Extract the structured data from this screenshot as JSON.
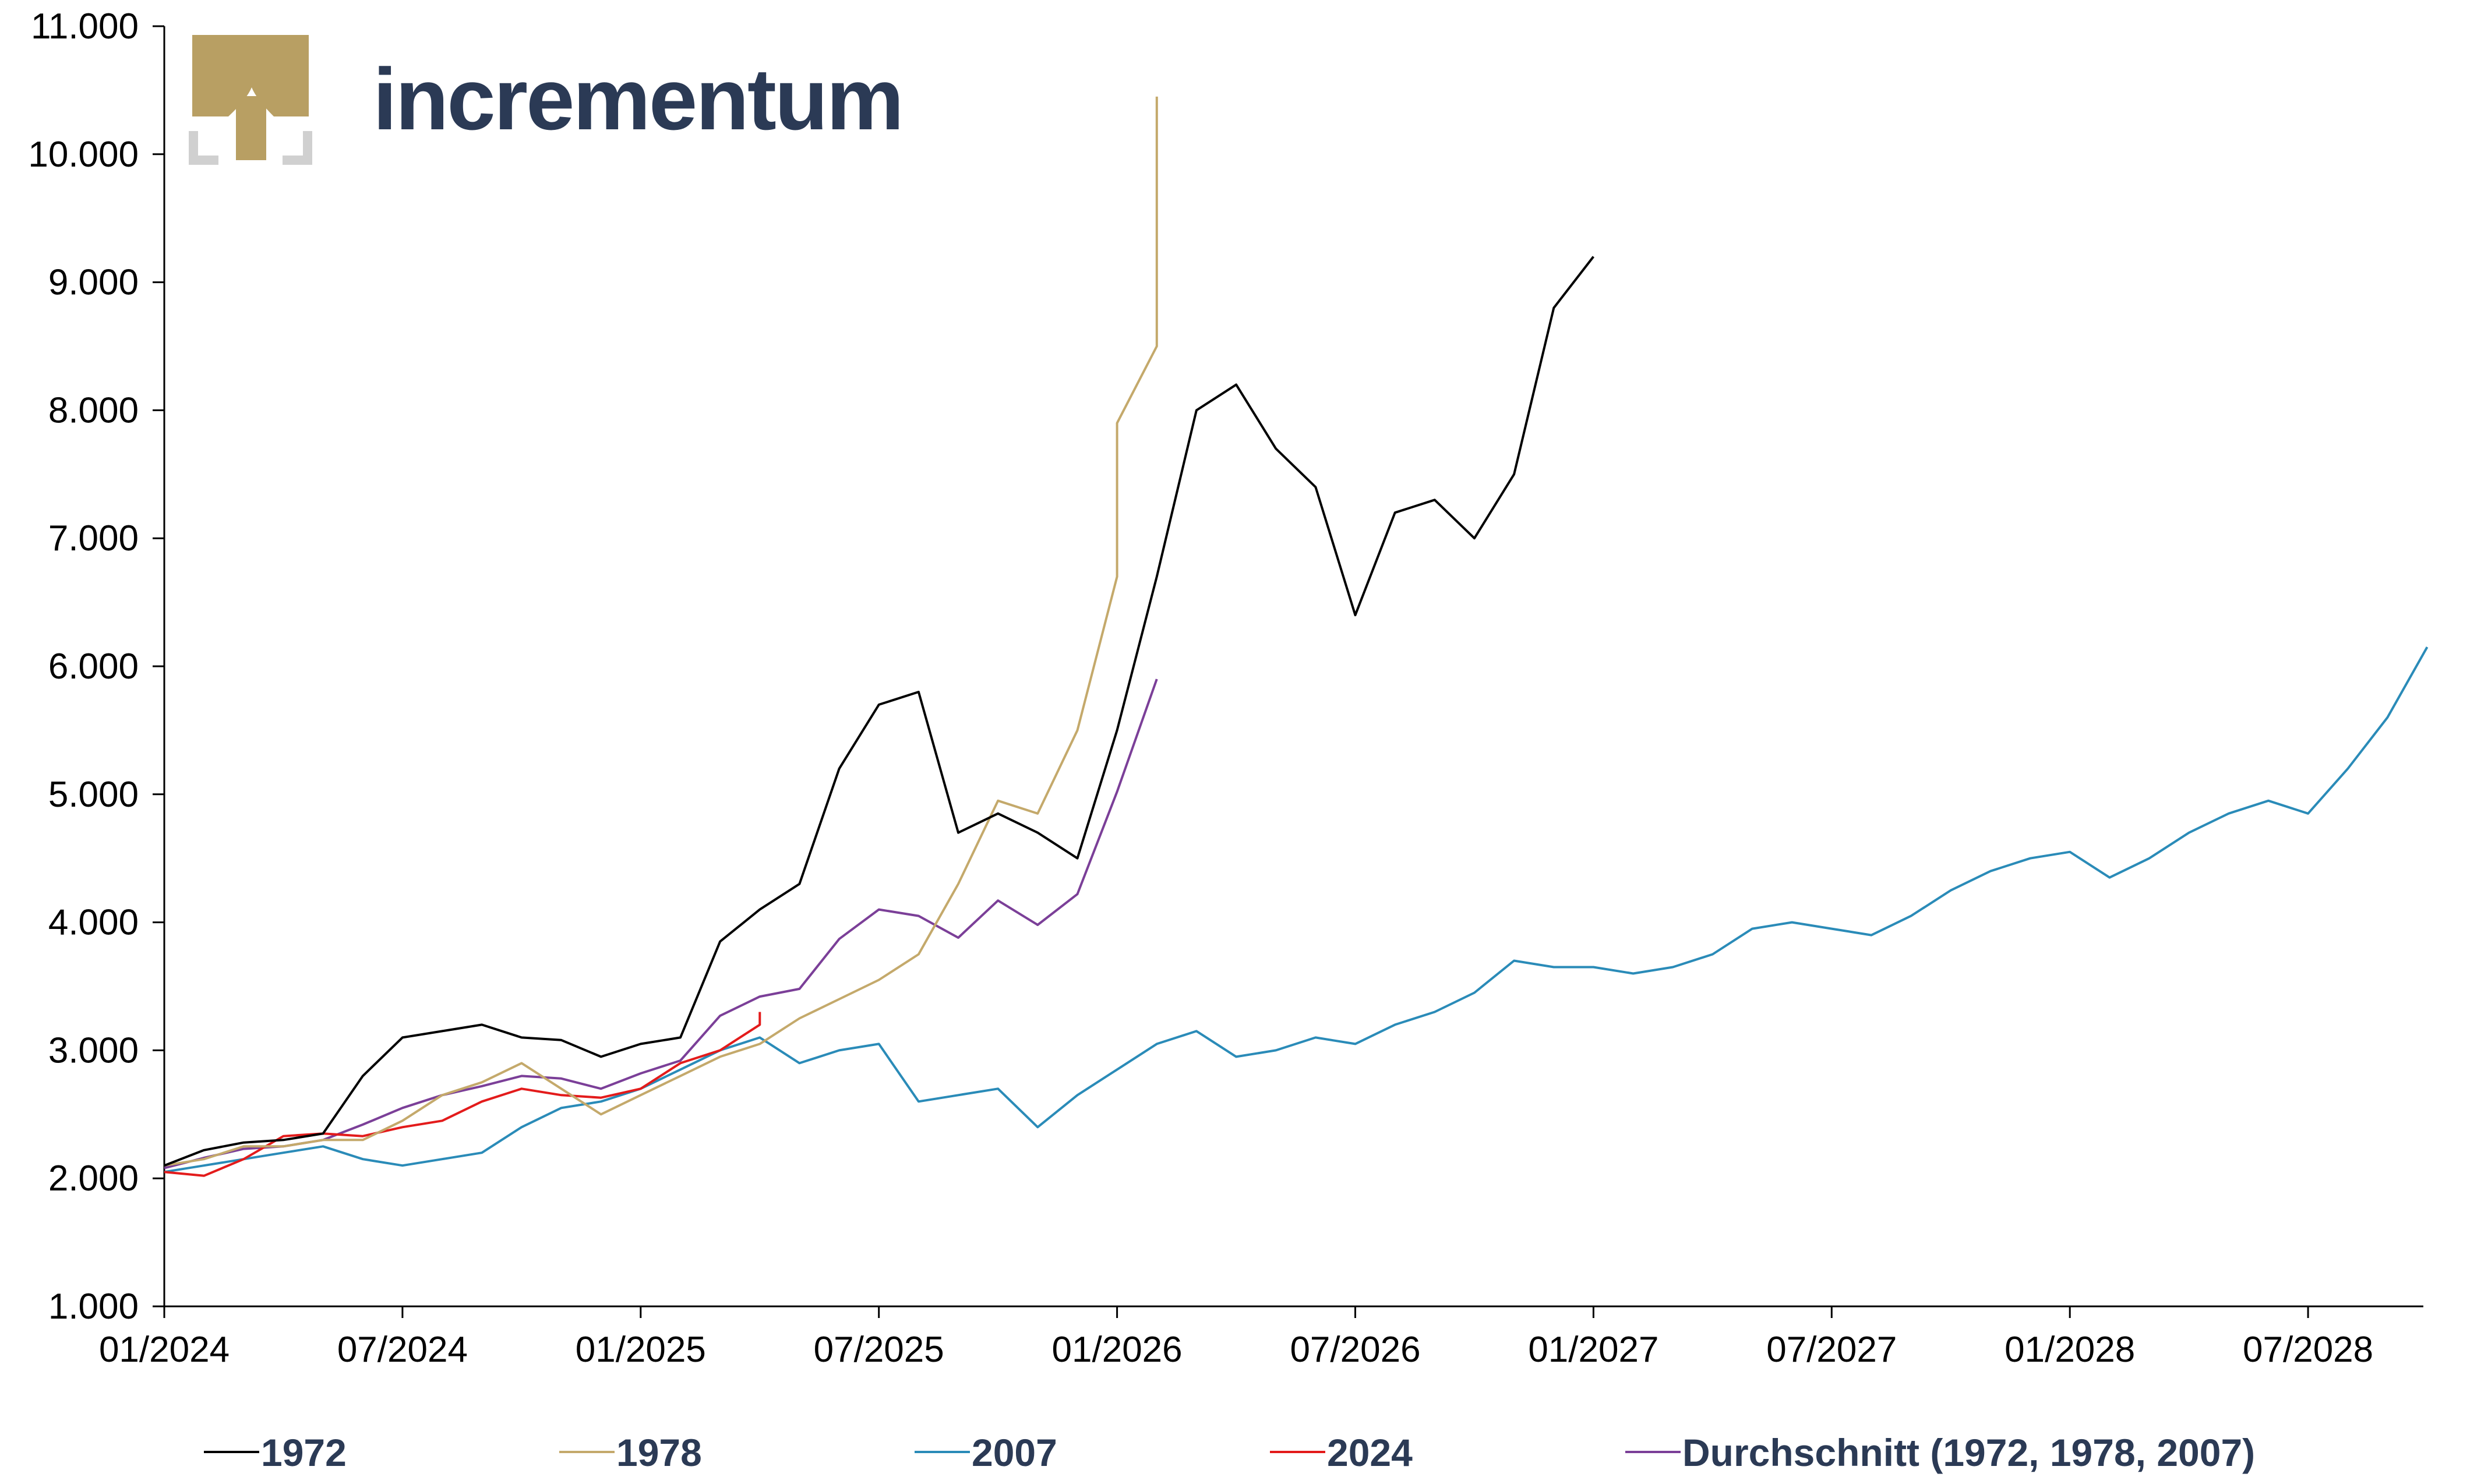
{
  "brand": {
    "name": "incrementum",
    "name_color": "#2b3a55",
    "logo_color": "#b89f63",
    "frame_color": "#d0d0d0"
  },
  "chart_data": {
    "type": "line",
    "title": "",
    "xlabel": "",
    "ylabel": "",
    "ylim": [
      1000,
      11000
    ],
    "xlim": [
      "2024-01",
      "2028-10"
    ],
    "y_ticks": [
      1000,
      2000,
      3000,
      4000,
      5000,
      6000,
      7000,
      8000,
      9000,
      10000,
      11000
    ],
    "y_tick_labels": [
      "1.000",
      "2.000",
      "3.000",
      "4.000",
      "5.000",
      "6.000",
      "7.000",
      "8.000",
      "9.000",
      "10.000",
      "11.000"
    ],
    "x_ticks": [
      "2024-01",
      "2024-07",
      "2025-01",
      "2025-07",
      "2026-01",
      "2026-07",
      "2027-01",
      "2027-07",
      "2028-01",
      "2028-07"
    ],
    "x_tick_labels": [
      "01/2024",
      "07/2024",
      "01/2025",
      "07/2025",
      "01/2026",
      "07/2026",
      "01/2027",
      "07/2027",
      "01/2028",
      "07/2028"
    ],
    "grid": false,
    "legend_position": "bottom",
    "series": [
      {
        "name": "1972",
        "color": "#000000",
        "points": [
          [
            "2024-01",
            2100
          ],
          [
            "2024-02",
            2220
          ],
          [
            "2024-03",
            2280
          ],
          [
            "2024-04",
            2300
          ],
          [
            "2024-05",
            2350
          ],
          [
            "2024-06",
            2800
          ],
          [
            "2024-07",
            3100
          ],
          [
            "2024-08",
            3150
          ],
          [
            "2024-09",
            3200
          ],
          [
            "2024-10",
            3100
          ],
          [
            "2024-11",
            3080
          ],
          [
            "2024-12",
            2950
          ],
          [
            "2025-01",
            3050
          ],
          [
            "2025-02",
            3100
          ],
          [
            "2025-03",
            3850
          ],
          [
            "2025-04",
            4100
          ],
          [
            "2025-05",
            4300
          ],
          [
            "2025-06",
            5200
          ],
          [
            "2025-07",
            5700
          ],
          [
            "2025-08",
            5800
          ],
          [
            "2025-09",
            4700
          ],
          [
            "2025-10",
            4850
          ],
          [
            "2025-11",
            4700
          ],
          [
            "2025-12",
            4500
          ],
          [
            "2026-01",
            5500
          ],
          [
            "2026-02",
            6700
          ],
          [
            "2026-03",
            8000
          ],
          [
            "2026-04",
            8200
          ],
          [
            "2026-05",
            7700
          ],
          [
            "2026-06",
            7400
          ],
          [
            "2026-07",
            6400
          ],
          [
            "2026-08",
            7200
          ],
          [
            "2026-09",
            7300
          ],
          [
            "2026-10",
            7000
          ],
          [
            "2026-11",
            7500
          ],
          [
            "2026-12",
            8800
          ],
          [
            "2027-01",
            9200
          ]
        ]
      },
      {
        "name": "1978",
        "color": "#c4a96b",
        "points": [
          [
            "2024-01",
            2100
          ],
          [
            "2024-02",
            2150
          ],
          [
            "2024-03",
            2250
          ],
          [
            "2024-04",
            2250
          ],
          [
            "2024-05",
            2300
          ],
          [
            "2024-06",
            2300
          ],
          [
            "2024-07",
            2450
          ],
          [
            "2024-08",
            2650
          ],
          [
            "2024-09",
            2750
          ],
          [
            "2024-10",
            2900
          ],
          [
            "2024-11",
            2700
          ],
          [
            "2024-12",
            2500
          ],
          [
            "2025-01",
            2650
          ],
          [
            "2025-02",
            2800
          ],
          [
            "2025-03",
            2950
          ],
          [
            "2025-04",
            3050
          ],
          [
            "2025-05",
            3250
          ],
          [
            "2025-06",
            3400
          ],
          [
            "2025-07",
            3550
          ],
          [
            "2025-08",
            3750
          ],
          [
            "2025-09",
            4300
          ],
          [
            "2025-10",
            4950
          ],
          [
            "2025-11",
            4850
          ],
          [
            "2025-12",
            5500
          ],
          [
            "2026-01",
            6700
          ],
          [
            "2026-01",
            7900
          ],
          [
            "2026-02",
            8500
          ],
          [
            "2026-02",
            10450
          ]
        ]
      },
      {
        "name": "2007",
        "color": "#2a8bb8",
        "points": [
          [
            "2024-01",
            2050
          ],
          [
            "2024-02",
            2100
          ],
          [
            "2024-03",
            2150
          ],
          [
            "2024-04",
            2200
          ],
          [
            "2024-05",
            2250
          ],
          [
            "2024-06",
            2150
          ],
          [
            "2024-07",
            2100
          ],
          [
            "2024-08",
            2150
          ],
          [
            "2024-09",
            2200
          ],
          [
            "2024-10",
            2400
          ],
          [
            "2024-11",
            2550
          ],
          [
            "2024-12",
            2600
          ],
          [
            "2025-01",
            2700
          ],
          [
            "2025-02",
            2850
          ],
          [
            "2025-03",
            3000
          ],
          [
            "2025-04",
            3100
          ],
          [
            "2025-05",
            2900
          ],
          [
            "2025-06",
            3000
          ],
          [
            "2025-07",
            3050
          ],
          [
            "2025-08",
            2600
          ],
          [
            "2025-09",
            2650
          ],
          [
            "2025-10",
            2700
          ],
          [
            "2025-11",
            2400
          ],
          [
            "2025-12",
            2650
          ],
          [
            "2026-01",
            2850
          ],
          [
            "2026-02",
            3050
          ],
          [
            "2026-03",
            3150
          ],
          [
            "2026-04",
            2950
          ],
          [
            "2026-05",
            3000
          ],
          [
            "2026-06",
            3100
          ],
          [
            "2026-07",
            3050
          ],
          [
            "2026-08",
            3200
          ],
          [
            "2026-09",
            3300
          ],
          [
            "2026-10",
            3450
          ],
          [
            "2026-11",
            3700
          ],
          [
            "2026-12",
            3650
          ],
          [
            "2027-01",
            3650
          ],
          [
            "2027-02",
            3600
          ],
          [
            "2027-03",
            3650
          ],
          [
            "2027-04",
            3750
          ],
          [
            "2027-05",
            3950
          ],
          [
            "2027-06",
            4000
          ],
          [
            "2027-07",
            3950
          ],
          [
            "2027-08",
            3900
          ],
          [
            "2027-09",
            4050
          ],
          [
            "2027-10",
            4250
          ],
          [
            "2027-11",
            4400
          ],
          [
            "2027-12",
            4500
          ],
          [
            "2028-01",
            4550
          ],
          [
            "2028-02",
            4350
          ],
          [
            "2028-03",
            4500
          ],
          [
            "2028-04",
            4700
          ],
          [
            "2028-05",
            4850
          ],
          [
            "2028-06",
            4950
          ],
          [
            "2028-07",
            4850
          ],
          [
            "2028-08",
            5200
          ],
          [
            "2028-09",
            5600
          ],
          [
            "2028-10",
            6150
          ]
        ]
      },
      {
        "name": "2024",
        "color": "#e31b1b",
        "points": [
          [
            "2024-01",
            2050
          ],
          [
            "2024-02",
            2020
          ],
          [
            "2024-03",
            2150
          ],
          [
            "2024-04",
            2330
          ],
          [
            "2024-05",
            2350
          ],
          [
            "2024-06",
            2330
          ],
          [
            "2024-07",
            2400
          ],
          [
            "2024-08",
            2450
          ],
          [
            "2024-09",
            2600
          ],
          [
            "2024-10",
            2700
          ],
          [
            "2024-11",
            2650
          ],
          [
            "2024-12",
            2630
          ],
          [
            "2025-01",
            2700
          ],
          [
            "2025-02",
            2900
          ],
          [
            "2025-03",
            3000
          ],
          [
            "2025-04",
            3200
          ],
          [
            "2025-04",
            3300
          ]
        ]
      },
      {
        "name": "Durchschnitt (1972, 1978, 2007)",
        "color": "#7b3f98",
        "points": [
          [
            "2024-01",
            2080
          ],
          [
            "2024-02",
            2160
          ],
          [
            "2024-03",
            2230
          ],
          [
            "2024-04",
            2250
          ],
          [
            "2024-05",
            2300
          ],
          [
            "2024-06",
            2420
          ],
          [
            "2024-07",
            2550
          ],
          [
            "2024-08",
            2650
          ],
          [
            "2024-09",
            2720
          ],
          [
            "2024-10",
            2800
          ],
          [
            "2024-11",
            2780
          ],
          [
            "2024-12",
            2700
          ],
          [
            "2025-01",
            2820
          ],
          [
            "2025-02",
            2920
          ],
          [
            "2025-03",
            3270
          ],
          [
            "2025-04",
            3420
          ],
          [
            "2025-05",
            3480
          ],
          [
            "2025-06",
            3870
          ],
          [
            "2025-07",
            4100
          ],
          [
            "2025-08",
            4050
          ],
          [
            "2025-09",
            3880
          ],
          [
            "2025-10",
            4170
          ],
          [
            "2025-11",
            3980
          ],
          [
            "2025-12",
            4220
          ],
          [
            "2026-01",
            5020
          ],
          [
            "2026-02",
            5900
          ]
        ]
      }
    ]
  },
  "legend": [
    {
      "label": "1972",
      "color": "#000000"
    },
    {
      "label": "1978",
      "color": "#c4a96b"
    },
    {
      "label": "2007",
      "color": "#2a8bb8"
    },
    {
      "label": "2024",
      "color": "#e31b1b"
    },
    {
      "label": "Durchschnitt (1972, 1978, 2007)",
      "color": "#7b3f98"
    }
  ]
}
